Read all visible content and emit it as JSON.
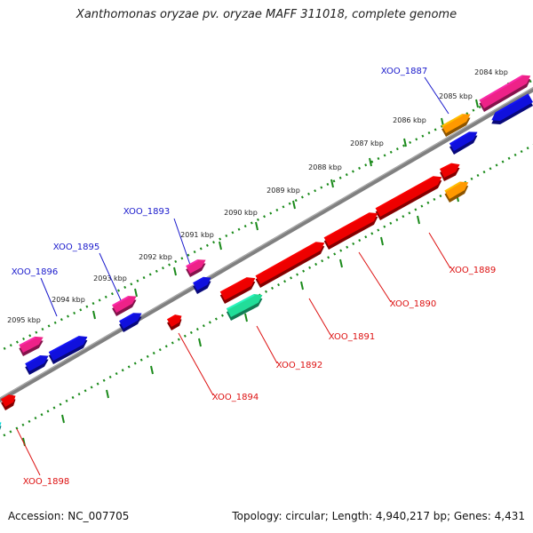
{
  "header": {
    "title": "Xanthomonas oryzae pv. oryzae MAFF 311018, complete genome"
  },
  "footer": {
    "accession": "Accession: NC_007705",
    "topology": "Topology: circular; Length: 4,940,217 bp; Genes: 4,431"
  },
  "colors": {
    "backbone": "#7f7f7f",
    "ticks": "#1a8a1a",
    "upper_label": "#1a1acc",
    "lower_label": "#dd1111",
    "red": "#ee0000",
    "blue": "#1010dd",
    "magenta": "#ee2288",
    "orange": "#ff9900",
    "teal": "#22dd99",
    "cyan": "#00dddd"
  },
  "kbp_ticks": [
    {
      "kbp": 2084,
      "label": "2084 kbp"
    },
    {
      "kbp": 2085,
      "label": "2085 kbp"
    },
    {
      "kbp": 2086,
      "label": "2086 kbp"
    },
    {
      "kbp": 2087,
      "label": "2087 kbp"
    },
    {
      "kbp": 2088,
      "label": "2088 kbp"
    },
    {
      "kbp": 2089,
      "label": "2089 kbp"
    },
    {
      "kbp": 2090,
      "label": "2090 kbp"
    },
    {
      "kbp": 2091,
      "label": "2091 kbp"
    },
    {
      "kbp": 2092,
      "label": "2092 kbp"
    },
    {
      "kbp": 2093,
      "label": "2093 kbp"
    },
    {
      "kbp": 2094,
      "label": "2094 kbp"
    },
    {
      "kbp": 2095,
      "label": "2095 kbp"
    }
  ],
  "gene_labels": [
    {
      "name": "XOO_1887",
      "strand": "upper"
    },
    {
      "name": "XOO_1893",
      "strand": "upper"
    },
    {
      "name": "XOO_1895",
      "strand": "upper"
    },
    {
      "name": "XOO_1896",
      "strand": "upper"
    },
    {
      "name": "XOO_1889",
      "strand": "lower"
    },
    {
      "name": "XOO_1890",
      "strand": "lower"
    },
    {
      "name": "XOO_1891",
      "strand": "lower"
    },
    {
      "name": "XOO_1892",
      "strand": "lower"
    },
    {
      "name": "XOO_1894",
      "strand": "lower"
    },
    {
      "name": "XOO_1898",
      "strand": "lower"
    }
  ]
}
